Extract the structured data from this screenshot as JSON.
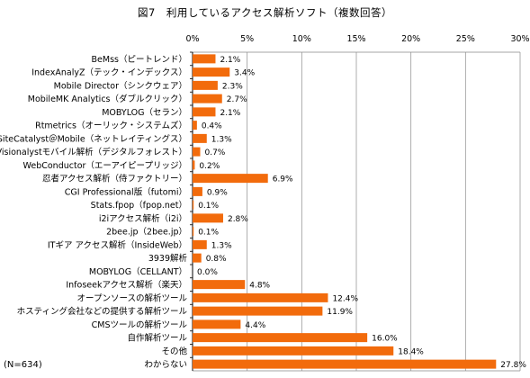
{
  "chart_data": {
    "type": "bar",
    "orientation": "horizontal",
    "title": "図7　利用しているアクセス解析ソフト（複数回答）",
    "note": "(N=634)",
    "x_ticks": [
      "0%",
      "5%",
      "10%",
      "15%",
      "20%",
      "25%",
      "30%"
    ],
    "xlim": [
      0,
      30
    ],
    "grid": true,
    "bar_color": "#F26B0C",
    "categories": [
      "BeMss（ピートレンド）",
      "IndexAnalyZ（テック・インデックス）",
      "Mobile Director（シンクウェア）",
      "MobileMK Analytics（ダブルクリック）",
      "MOBYLOG（セラン）",
      "Rtmetrics（オーリック・システムズ）",
      "SiteCatalyst＠Mobile（ネットレイティングス）",
      "Visionalystモバイル解析（デジタルフォレスト）",
      "WebConductor（エーアイピープリッジ）",
      "忍者アクセス解析（侍ファクトリー）",
      "CGI Professional版（futomi）",
      "Stats.fpop（fpop.net）",
      "i2iアクセス解析（i2i）",
      "2bee.jp（2bee.jp）",
      "ITギア アクセス解析（InsideWeb）",
      "3939解析",
      "MOBYLOG（CELLANT）",
      "Infoseekアクセス解析（楽天）",
      "オープンソースの解析ツール",
      "ホスティング会社などの提供する解析ツール",
      "CMSツールの解析ツール",
      "自作解析ツール",
      "その他",
      "わからない"
    ],
    "values": [
      2.1,
      3.4,
      2.3,
      2.7,
      2.1,
      0.4,
      1.3,
      0.7,
      0.2,
      6.9,
      0.9,
      0.1,
      2.8,
      0.1,
      1.3,
      0.8,
      0.0,
      4.8,
      12.4,
      11.9,
      4.4,
      16.0,
      18.4,
      27.8
    ],
    "value_labels": [
      "2.1%",
      "3.4%",
      "2.3%",
      "2.7%",
      "2.1%",
      "0.4%",
      "1.3%",
      "0.7%",
      "0.2%",
      "6.9%",
      "0.9%",
      "0.1%",
      "2.8%",
      "0.1%",
      "1.3%",
      "0.8%",
      "0.0%",
      "4.8%",
      "12.4%",
      "11.9%",
      "4.4%",
      "16.0%",
      "18.4%",
      "27.8%"
    ]
  }
}
